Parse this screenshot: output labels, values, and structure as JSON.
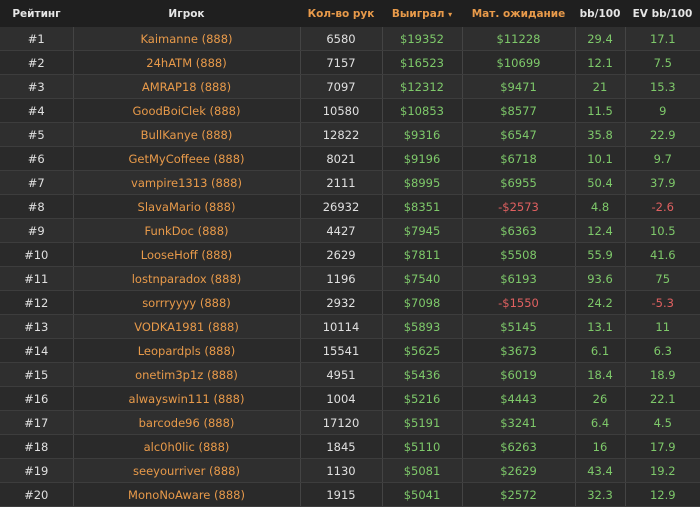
{
  "colors": {
    "positive": "#7ec96a",
    "negative": "#e06060",
    "player": "#e89a4a",
    "header_active": "#e89a4a"
  },
  "header": {
    "rank": "Рейтинг",
    "player": "Игрок",
    "hands": "Кол-во рук",
    "won": "Выиграл",
    "sort_icon": "caret-down-icon",
    "sort_glyph": "▾",
    "ev": "Мат. ожидание",
    "bb100": "bb/100",
    "evbb100": "EV bb/100"
  },
  "rows": [
    {
      "rank": "#1",
      "player": "Kaimanne (888)",
      "hands": "6580",
      "won": "$19352",
      "ev": "$11228",
      "bb100": "29.4",
      "evbb100": "17.1"
    },
    {
      "rank": "#2",
      "player": "24hATM (888)",
      "hands": "7157",
      "won": "$16523",
      "ev": "$10699",
      "bb100": "12.1",
      "evbb100": "7.5"
    },
    {
      "rank": "#3",
      "player": "AMRAP18 (888)",
      "hands": "7097",
      "won": "$12312",
      "ev": "$9471",
      "bb100": "21",
      "evbb100": "15.3"
    },
    {
      "rank": "#4",
      "player": "GoodBoiClek (888)",
      "hands": "10580",
      "won": "$10853",
      "ev": "$8577",
      "bb100": "11.5",
      "evbb100": "9"
    },
    {
      "rank": "#5",
      "player": "BullKanye (888)",
      "hands": "12822",
      "won": "$9316",
      "ev": "$6547",
      "bb100": "35.8",
      "evbb100": "22.9"
    },
    {
      "rank": "#6",
      "player": "GetMyCoffeee (888)",
      "hands": "8021",
      "won": "$9196",
      "ev": "$6718",
      "bb100": "10.1",
      "evbb100": "9.7"
    },
    {
      "rank": "#7",
      "player": "vampire1313 (888)",
      "hands": "2111",
      "won": "$8995",
      "ev": "$6955",
      "bb100": "50.4",
      "evbb100": "37.9"
    },
    {
      "rank": "#8",
      "player": "SlavaMario (888)",
      "hands": "26932",
      "won": "$8351",
      "ev": "-$2573",
      "bb100": "4.8",
      "evbb100": "-2.6"
    },
    {
      "rank": "#9",
      "player": "FunkDoc (888)",
      "hands": "4427",
      "won": "$7945",
      "ev": "$6363",
      "bb100": "12.4",
      "evbb100": "10.5"
    },
    {
      "rank": "#10",
      "player": "LooseHoff (888)",
      "hands": "2629",
      "won": "$7811",
      "ev": "$5508",
      "bb100": "55.9",
      "evbb100": "41.6"
    },
    {
      "rank": "#11",
      "player": "lostnparadox (888)",
      "hands": "1196",
      "won": "$7540",
      "ev": "$6193",
      "bb100": "93.6",
      "evbb100": "75"
    },
    {
      "rank": "#12",
      "player": "sorrryyyy (888)",
      "hands": "2932",
      "won": "$7098",
      "ev": "-$1550",
      "bb100": "24.2",
      "evbb100": "-5.3"
    },
    {
      "rank": "#13",
      "player": "VODKA1981 (888)",
      "hands": "10114",
      "won": "$5893",
      "ev": "$5145",
      "bb100": "13.1",
      "evbb100": "11"
    },
    {
      "rank": "#14",
      "player": "Leopardpls (888)",
      "hands": "15541",
      "won": "$5625",
      "ev": "$3673",
      "bb100": "6.1",
      "evbb100": "6.3"
    },
    {
      "rank": "#15",
      "player": "onetim3p1z (888)",
      "hands": "4951",
      "won": "$5436",
      "ev": "$6019",
      "bb100": "18.4",
      "evbb100": "18.9"
    },
    {
      "rank": "#16",
      "player": "alwayswin111 (888)",
      "hands": "1004",
      "won": "$5216",
      "ev": "$4443",
      "bb100": "26",
      "evbb100": "22.1"
    },
    {
      "rank": "#17",
      "player": "barcode96 (888)",
      "hands": "17120",
      "won": "$5191",
      "ev": "$3241",
      "bb100": "6.4",
      "evbb100": "4.5"
    },
    {
      "rank": "#18",
      "player": "alc0h0lic (888)",
      "hands": "1845",
      "won": "$5110",
      "ev": "$6263",
      "bb100": "16",
      "evbb100": "17.9"
    },
    {
      "rank": "#19",
      "player": "seeyourriver (888)",
      "hands": "1130",
      "won": "$5081",
      "ev": "$2629",
      "bb100": "43.4",
      "evbb100": "19.2"
    },
    {
      "rank": "#20",
      "player": "MonoNoAware (888)",
      "hands": "1915",
      "won": "$5041",
      "ev": "$2572",
      "bb100": "32.3",
      "evbb100": "12.9"
    }
  ]
}
